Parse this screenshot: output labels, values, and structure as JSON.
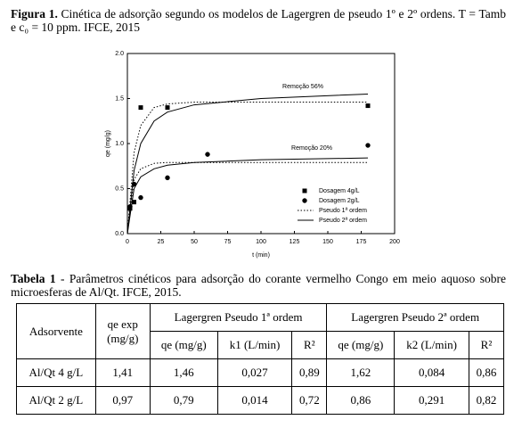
{
  "caption": {
    "label": "Figura 1.",
    "text": "Cinética de adsorção segundo os modelos de Lagergren de pseudo 1º e 2º ordens. T = Tamb e c₀ = 10 ppm. IFCE, 2015"
  },
  "chart_data": {
    "type": "scatter",
    "xlabel": "t (min)",
    "ylabel": "qe (mg/g)",
    "xlim": [
      0,
      200
    ],
    "xticks": [
      0,
      25,
      50,
      75,
      100,
      125,
      150,
      175,
      200
    ],
    "ylim": [
      0,
      2
    ],
    "yticks": [
      {
        "value": 0,
        "label": "0.0"
      },
      {
        "value": 0.5,
        "label": "0.5"
      },
      {
        "value": 1,
        "label": "1.0"
      },
      {
        "value": 1.5,
        "label": "1.5"
      },
      {
        "value": 2,
        "label": "2.0"
      }
    ],
    "annotations": [
      "Remoção 56%",
      "Remoção 20%"
    ],
    "legend": "lower right",
    "color": "#000000",
    "series": [
      {
        "name": "Dosagem 4g/L",
        "mode": "markers",
        "marker": "square",
        "x": [
          2,
          5,
          10,
          30,
          180
        ],
        "values": [
          0.28,
          0.35,
          1.4,
          1.4,
          1.42
        ]
      },
      {
        "name": "Dosagem 2g/L",
        "mode": "markers",
        "marker": "circle",
        "x": [
          2,
          5,
          10,
          30,
          60,
          180
        ],
        "values": [
          0.3,
          0.55,
          0.4,
          0.62,
          0.88,
          0.98
        ]
      },
      {
        "name": "Pseudo 1ª ordem",
        "mode": "line",
        "dash": true,
        "x": [
          0,
          5,
          10,
          20,
          30,
          50,
          100,
          180
        ],
        "values": [
          0,
          0.9,
          1.2,
          1.4,
          1.44,
          1.46,
          1.46,
          1.46
        ]
      },
      {
        "mode": "line",
        "dash": true,
        "x": [
          0,
          5,
          10,
          20,
          30,
          50,
          100,
          180
        ],
        "values": [
          0,
          0.6,
          0.72,
          0.78,
          0.79,
          0.79,
          0.79,
          0.79
        ]
      },
      {
        "name": "Pseudo 2ª ordem",
        "mode": "line",
        "dash": false,
        "x": [
          0,
          5,
          10,
          20,
          30,
          50,
          100,
          180
        ],
        "values": [
          0,
          0.7,
          1.0,
          1.25,
          1.35,
          1.43,
          1.5,
          1.55
        ]
      },
      {
        "mode": "line",
        "dash": false,
        "x": [
          0,
          5,
          10,
          20,
          30,
          50,
          100,
          180
        ],
        "values": [
          0,
          0.5,
          0.63,
          0.72,
          0.76,
          0.79,
          0.82,
          0.84
        ]
      }
    ]
  },
  "table_caption": {
    "label": "Tabela 1",
    "text": "- Parâmetros cinéticos para adsorção do corante vermelho Congo em meio aquoso sobre microesferas de Al/Qt. IFCE, 2015."
  },
  "table": {
    "header1": [
      "Adsorvente",
      "qe exp (mg/g)",
      "Lagergren Pseudo 1ª ordem",
      "Lagergren Pseudo 2ª ordem"
    ],
    "header2": [
      "qe (mg/g)",
      "k1 (L/min)",
      "R²",
      "qe (mg/g)",
      "k2 (L/min)",
      "R²"
    ],
    "rows": [
      [
        "Al/Qt 4 g/L",
        "1,41",
        "1,46",
        "0,027",
        "0,89",
        "1,62",
        "0,084",
        "0,86"
      ],
      [
        "Al/Qt 2 g/L",
        "0,97",
        "0,79",
        "0,014",
        "0,72",
        "0,86",
        "0,291",
        "0,82"
      ]
    ]
  }
}
